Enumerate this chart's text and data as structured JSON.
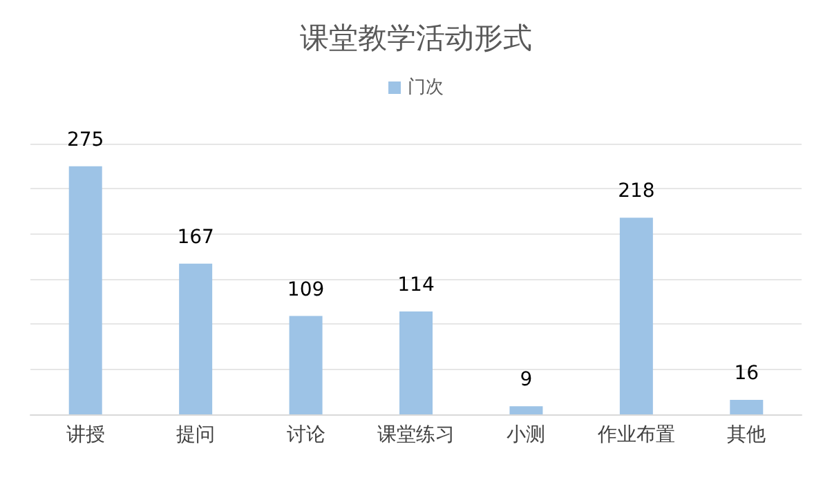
{
  "chart_data": {
    "type": "bar",
    "title": "课堂教学活动形式",
    "categories": [
      "讲授",
      "提问",
      "讨论",
      "课堂练习",
      "小测",
      "作业布置",
      "其他"
    ],
    "series": [
      {
        "name": "门次",
        "color": "#9dc3e6",
        "values": [
          275,
          167,
          109,
          114,
          9,
          218,
          16
        ]
      }
    ],
    "ylim": [
      0,
      300
    ],
    "yticks": [
      {
        "value": 0,
        "label": null
      },
      {
        "value": 50,
        "label": null
      },
      {
        "value": 100,
        "label": null
      },
      {
        "value": 150,
        "label": null
      },
      {
        "value": 200,
        "label": null
      },
      {
        "value": 250,
        "label": null
      },
      {
        "value": 300,
        "label": null
      }
    ],
    "grid": "y",
    "legend": "top",
    "tick_labels": "x",
    "data_labels": true
  }
}
